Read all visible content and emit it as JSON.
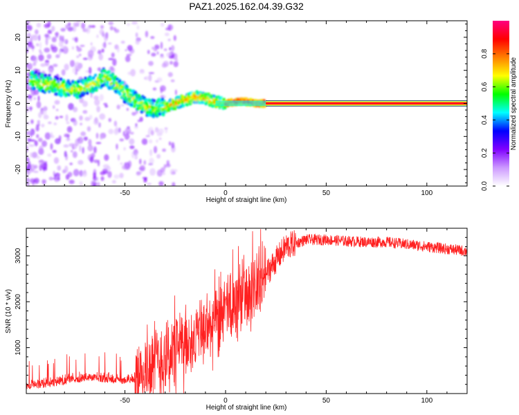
{
  "title": "PAZ1.2025.162.04.39.G32",
  "chart_data": [
    {
      "type": "heatmap",
      "xlabel": "Height of straight line (km)",
      "ylabel": "Frequency (Hz)",
      "xlim": [
        -99,
        120
      ],
      "ylim": [
        -25,
        25
      ],
      "x_ticks": [
        -50,
        0,
        50,
        100
      ],
      "y_ticks": [
        -20,
        -10,
        0,
        10,
        20
      ],
      "colorbar": {
        "label": "Normalized spectral amplitude",
        "range": [
          0,
          1
        ],
        "ticks": [
          "0.0",
          "0.2",
          "0.4",
          "0.6",
          "0.8"
        ],
        "colors": [
          "#ffffff",
          "#cc99ff",
          "#8000ff",
          "#0000ff",
          "#00ffff",
          "#00ff00",
          "#ffff00",
          "#ff8000",
          "#ff0000",
          "#ff0080"
        ]
      },
      "ridge": {
        "x": [
          -95,
          -90,
          -85,
          -80,
          -75,
          -70,
          -65,
          -60,
          -55,
          -50,
          -45,
          -40,
          -35,
          -30,
          -25,
          -20,
          -15,
          -10,
          -5,
          0,
          5,
          10,
          15,
          20,
          120
        ],
        "y": [
          7,
          6,
          5.5,
          4.5,
          4,
          5,
          6,
          8,
          6,
          3,
          1,
          -1,
          -1.5,
          -1,
          0,
          1,
          2,
          1.5,
          0.5,
          0,
          0.5,
          0.5,
          0,
          0,
          0
        ]
      }
    },
    {
      "type": "line",
      "xlabel": "Height of straight line (km)",
      "ylabel": "SNR (10 * v/v)",
      "xlim": [
        -99,
        120
      ],
      "ylim": [
        0,
        3600
      ],
      "x_ticks": [
        -50,
        0,
        50,
        100
      ],
      "y_ticks": [
        1000,
        2000,
        3000
      ],
      "series": [
        {
          "color": "#ff0000",
          "x": [
            -99,
            -90,
            -80,
            -70,
            -60,
            -50,
            -45,
            -40,
            -35,
            -30,
            -25,
            -20,
            -15,
            -10,
            -5,
            0,
            5,
            10,
            15,
            20,
            25,
            30,
            40,
            50,
            60,
            70,
            80,
            90,
            100,
            110,
            120
          ],
          "y": [
            150,
            180,
            250,
            320,
            300,
            250,
            300,
            500,
            650,
            800,
            950,
            1100,
            1250,
            1400,
            1550,
            1750,
            1950,
            2150,
            2350,
            2600,
            2900,
            3200,
            3350,
            3350,
            3320,
            3300,
            3300,
            3250,
            3200,
            3150,
            3100
          ]
        }
      ]
    }
  ]
}
